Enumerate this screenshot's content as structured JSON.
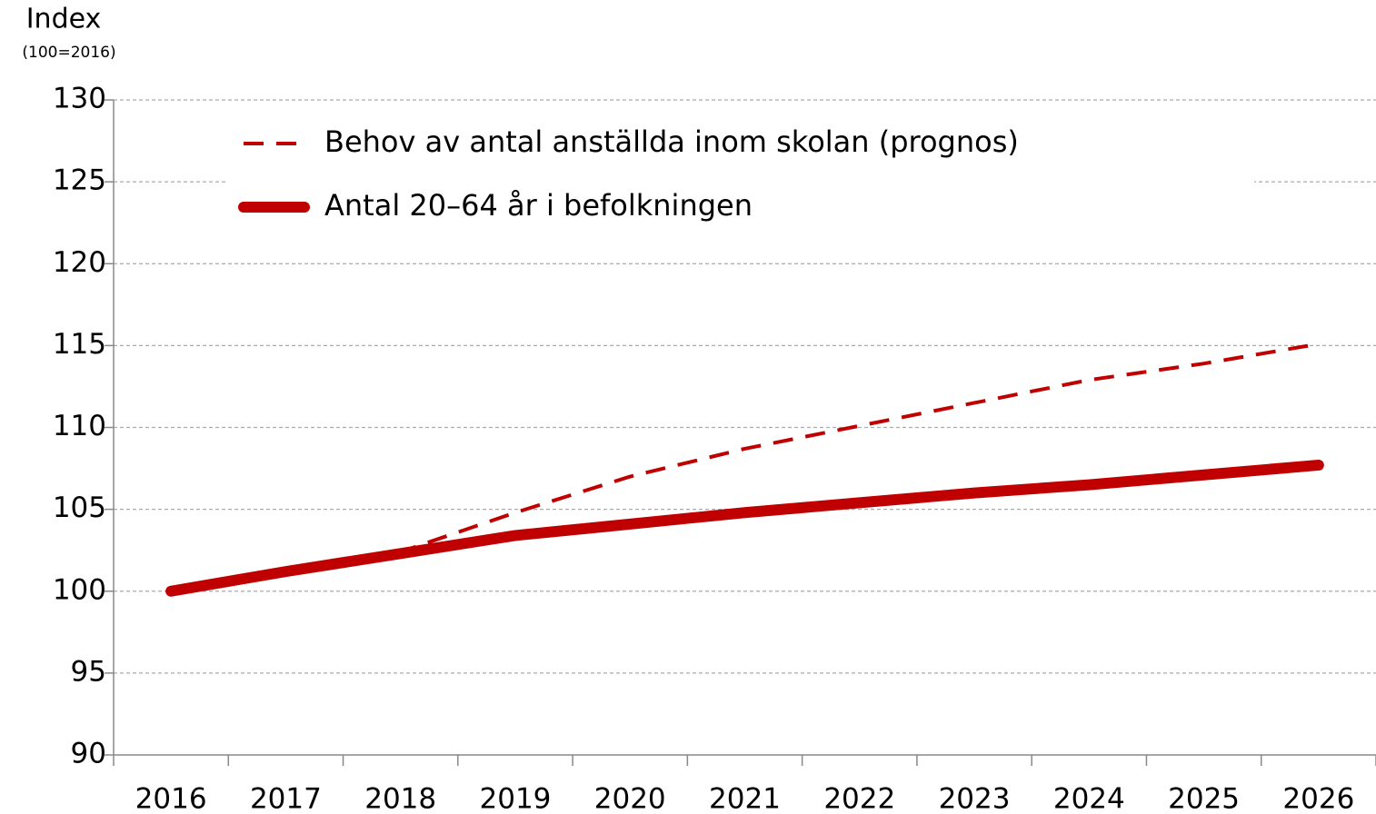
{
  "chart_data": {
    "type": "line",
    "y_label": "Index",
    "y_sublabel": "(100=2016)",
    "categories": [
      "2016",
      "2017",
      "2018",
      "2019",
      "2020",
      "2021",
      "2022",
      "2023",
      "2024",
      "2025",
      "2026"
    ],
    "series": [
      {
        "name": "Behov av antal anställda inom skolan (prognos)",
        "color": "#c00000",
        "style": "dashed",
        "values": [
          100,
          101.1,
          102.4,
          104.8,
          107.0,
          108.7,
          110.1,
          111.5,
          112.9,
          113.9,
          115.1
        ]
      },
      {
        "name": "Antal 20–64 år i befolkningen",
        "color": "#c00000",
        "style": "solid",
        "values": [
          100,
          101.2,
          102.3,
          103.4,
          104.1,
          104.8,
          105.4,
          106.0,
          106.5,
          107.1,
          107.7
        ]
      }
    ],
    "ylim": [
      90,
      130
    ],
    "yticks": [
      90,
      95,
      100,
      105,
      110,
      115,
      120,
      125,
      130
    ],
    "grid": true,
    "legend": "top-left"
  }
}
